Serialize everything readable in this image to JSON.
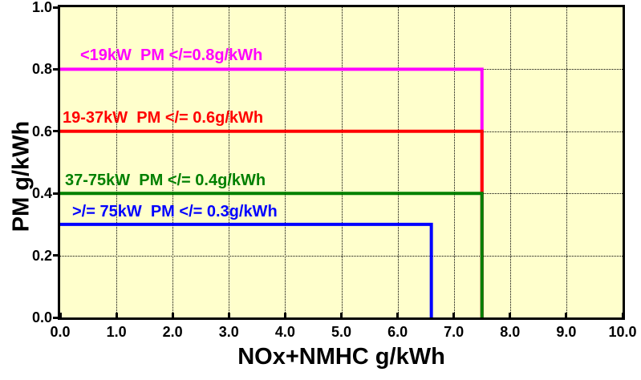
{
  "chart_data": {
    "type": "line",
    "subtype": "step-limit-lines",
    "title": "",
    "xlabel": "NOx+NMHC g/kWh",
    "ylabel": "PM g/kWh",
    "xlim": [
      0,
      10
    ],
    "ylim": [
      0,
      1.0
    ],
    "xticks": [
      0,
      1,
      2,
      3,
      4,
      5,
      6,
      7,
      8,
      9,
      10
    ],
    "xtick_labels": [
      "0.0",
      "1.0",
      "2.0",
      "3.0",
      "4.0",
      "5.0",
      "6.0",
      "7.0",
      "8.0",
      "9.0",
      "10.0"
    ],
    "yticks": [
      0,
      0.2,
      0.4,
      0.6,
      0.8,
      1.0
    ],
    "ytick_labels": [
      "0.0",
      "0.2",
      "0.4",
      "0.6",
      "0.8",
      "1.0"
    ],
    "grid": "dotted, vertical every 1.0 and horizontal every 0.2",
    "legend_position": "inline labels above each line",
    "plot_background": "#ffffcc",
    "border_color": "#000000",
    "series": [
      {
        "label": "<19kW  PM </=0.8g/kWh",
        "color": "#ff00ff",
        "pm_limit_g_per_kWh": 0.8,
        "nox_nmhc_limit_g_per_kWh": 7.5,
        "points": [
          [
            0,
            0.8
          ],
          [
            7.5,
            0.8
          ],
          [
            7.5,
            0
          ]
        ]
      },
      {
        "label": "19-37kW  PM </= 0.6g/kWh",
        "color": "#ff0000",
        "pm_limit_g_per_kWh": 0.6,
        "nox_nmhc_limit_g_per_kWh": 7.5,
        "points": [
          [
            0,
            0.6
          ],
          [
            7.5,
            0.6
          ],
          [
            7.5,
            0
          ]
        ]
      },
      {
        "label": "37-75kW  PM </= 0.4g/kWh",
        "color": "#008000",
        "pm_limit_g_per_kWh": 0.4,
        "nox_nmhc_limit_g_per_kWh": 7.5,
        "points": [
          [
            0,
            0.4
          ],
          [
            7.5,
            0.4
          ],
          [
            7.5,
            0
          ]
        ]
      },
      {
        "label": ">/= 75kW  PM </= 0.3g/kWh",
        "color": "#0000ff",
        "pm_limit_g_per_kWh": 0.3,
        "nox_nmhc_limit_g_per_kWh": 6.6,
        "points": [
          [
            0,
            0.3
          ],
          [
            6.6,
            0.3
          ],
          [
            6.6,
            0
          ]
        ]
      }
    ]
  }
}
